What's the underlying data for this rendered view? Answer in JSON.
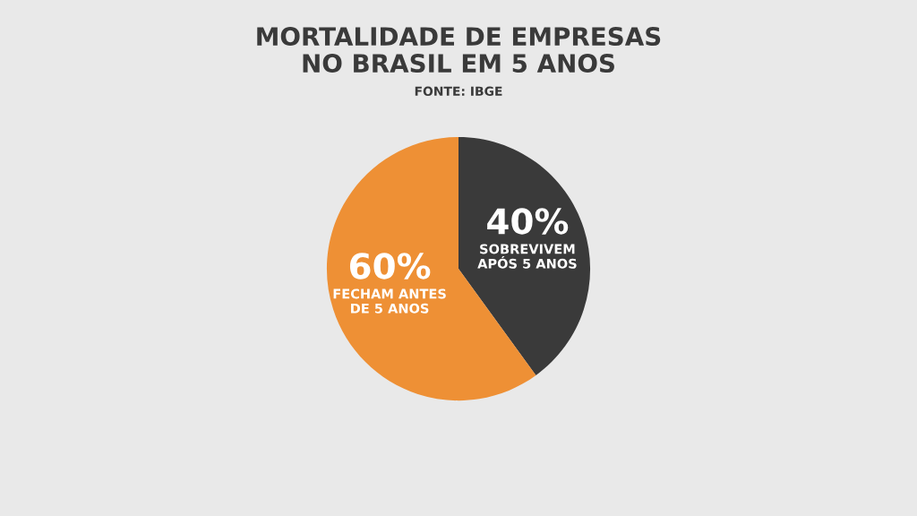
{
  "chart_data": {
    "type": "pie",
    "title": "MORTALIDADE DE EMPRESAS\nNO BRASIL EM 5 ANOS",
    "annotations": [
      "FONTE: IBGE"
    ],
    "categories": [
      "SOBREVIVEM\nAPÓS 5 ANOS",
      "FECHAM ANTES\nDE 5 ANOS"
    ],
    "values": [
      40,
      60
    ],
    "value_labels": [
      "40%",
      "60%"
    ],
    "colors": [
      "#3a3a3a",
      "#ee9035"
    ],
    "legend": false
  }
}
